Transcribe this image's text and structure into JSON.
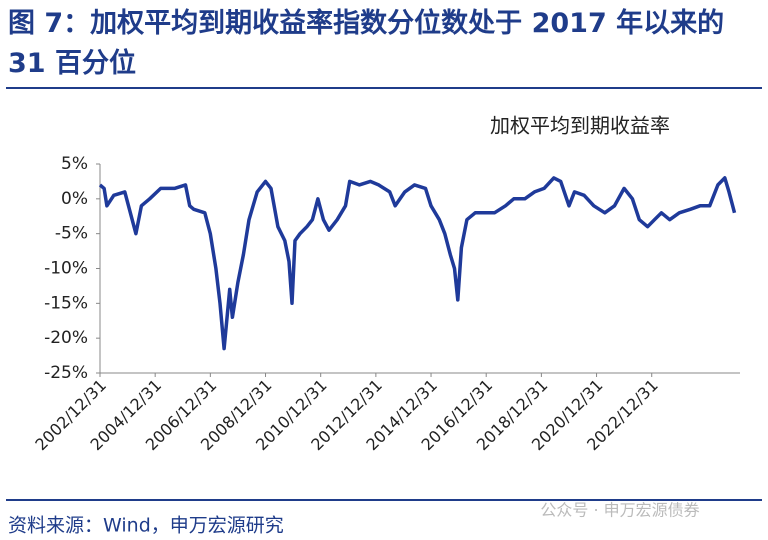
{
  "chart_data": {
    "type": "line",
    "title": "图 7：加权平均到期收益率指数分位数处于 2017 年以来的 31 百分位",
    "subtitle": "加权平均到期收益率",
    "source": "资料来源：Wind，申万宏源研究",
    "watermark": "公众号 · 申万宏源债券",
    "x": [
      2003.0,
      2003.15,
      2003.25,
      2003.5,
      2003.9,
      2004.3,
      2004.5,
      2004.8,
      2005.2,
      2005.7,
      2006.1,
      2006.25,
      2006.4,
      2006.8,
      2007.0,
      2007.2,
      2007.35,
      2007.5,
      2007.7,
      2007.8,
      2008.0,
      2008.2,
      2008.4,
      2008.7,
      2009.0,
      2009.2,
      2009.45,
      2009.7,
      2009.85,
      2009.96,
      2010.07,
      2010.25,
      2010.5,
      2010.7,
      2010.9,
      2011.1,
      2011.3,
      2011.6,
      2011.9,
      2012.05,
      2012.4,
      2012.8,
      2013.1,
      2013.5,
      2013.7,
      2014.05,
      2014.4,
      2014.8,
      2015.0,
      2015.3,
      2015.5,
      2015.7,
      2015.85,
      2015.97,
      2016.1,
      2016.3,
      2016.6,
      2016.95,
      2017.3,
      2017.7,
      2018.0,
      2018.4,
      2018.75,
      2019.1,
      2019.45,
      2019.7,
      2020.0,
      2020.2,
      2020.55,
      2020.9,
      2021.3,
      2021.65,
      2022.0,
      2022.3,
      2022.55,
      2022.85,
      2023.1,
      2023.35,
      2023.65,
      2024.0,
      2024.4,
      2024.75,
      2025.1,
      2025.4,
      2025.65,
      2025.8,
      2026.0
    ],
    "series": [
      {
        "name": "加权平均到期收益率",
        "color": "#1f3a9a",
        "values": [
          2,
          1.5,
          -1,
          0.5,
          1,
          -5,
          -1,
          0,
          1.5,
          1.5,
          2,
          -1,
          -1.5,
          -2,
          -5,
          -10,
          -15,
          -21.5,
          -13,
          -17,
          -12,
          -8,
          -3,
          1,
          2.5,
          1.5,
          -4,
          -6,
          -9,
          -15,
          -6,
          -5,
          -4,
          -3,
          0,
          -3,
          -4.5,
          -3,
          -1,
          2.5,
          2,
          2.5,
          2,
          1,
          -1,
          1,
          2,
          1.5,
          -1,
          -3,
          -5,
          -8,
          -10,
          -14.5,
          -7,
          -3,
          -2,
          -2,
          -2,
          -1,
          0,
          0,
          1,
          1.5,
          3,
          2.5,
          -1,
          1,
          0.5,
          -1,
          -2,
          -1,
          1.5,
          0,
          -3,
          -4,
          -3,
          -2,
          -3,
          -2,
          -1.5,
          -1,
          -1,
          2,
          3,
          1,
          -2
        ]
      }
    ],
    "xlim": [
      2003.0,
      2026.2
    ],
    "xticks": [
      {
        "value": 2003,
        "label": "2002/12/31"
      },
      {
        "value": 2005,
        "label": "2004/12/31"
      },
      {
        "value": 2007,
        "label": "2006/12/31"
      },
      {
        "value": 2009,
        "label": "2008/12/31"
      },
      {
        "value": 2011,
        "label": "2010/12/31"
      },
      {
        "value": 2013,
        "label": "2012/12/31"
      },
      {
        "value": 2015,
        "label": "2014/12/31"
      },
      {
        "value": 2017,
        "label": "2016/12/31"
      },
      {
        "value": 2019,
        "label": "2018/12/31"
      },
      {
        "value": 2021,
        "label": "2020/12/31"
      },
      {
        "value": 2023,
        "label": "2022/12/31"
      }
    ],
    "ylim": [
      -25,
      5
    ],
    "yticks": [
      {
        "value": 5,
        "label": "5%"
      },
      {
        "value": 0,
        "label": "0%"
      },
      {
        "value": -5,
        "label": "-5%"
      },
      {
        "value": -10,
        "label": "-10%"
      },
      {
        "value": -15,
        "label": "-15%"
      },
      {
        "value": -20,
        "label": "-20%"
      },
      {
        "value": -25,
        "label": "-25%"
      }
    ]
  }
}
